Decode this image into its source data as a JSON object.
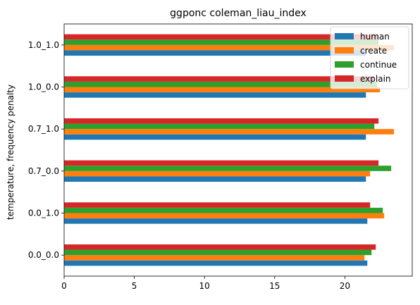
{
  "chart_data": {
    "type": "bar",
    "orientation": "horizontal",
    "title": "ggponc coleman_liau_index",
    "xlabel": "",
    "ylabel": "temperature, frequency penalty",
    "categories": [
      "0.0_0.0",
      "0.0_1.0",
      "0.7_0.0",
      "0.7_1.0",
      "1.0_0.0",
      "1.0_1.0"
    ],
    "xlim": [
      0,
      24.8
    ],
    "xticks": [
      0,
      5,
      10,
      15,
      20
    ],
    "grid": false,
    "legend_position": "top-right",
    "series": [
      {
        "name": "human",
        "color": "#1f77b4",
        "values": [
          21.6,
          21.6,
          21.5,
          21.5,
          21.5,
          21.5
        ]
      },
      {
        "name": "create",
        "color": "#ff7f0e",
        "values": [
          21.4,
          22.8,
          21.8,
          23.5,
          22.5,
          23.5
        ]
      },
      {
        "name": "continue",
        "color": "#2ca02c",
        "values": [
          21.9,
          22.7,
          23.3,
          22.1,
          22.3,
          22.4
        ]
      },
      {
        "name": "explain",
        "color": "#d62728",
        "values": [
          22.2,
          21.8,
          22.4,
          22.4,
          22.1,
          22.4
        ]
      }
    ]
  }
}
